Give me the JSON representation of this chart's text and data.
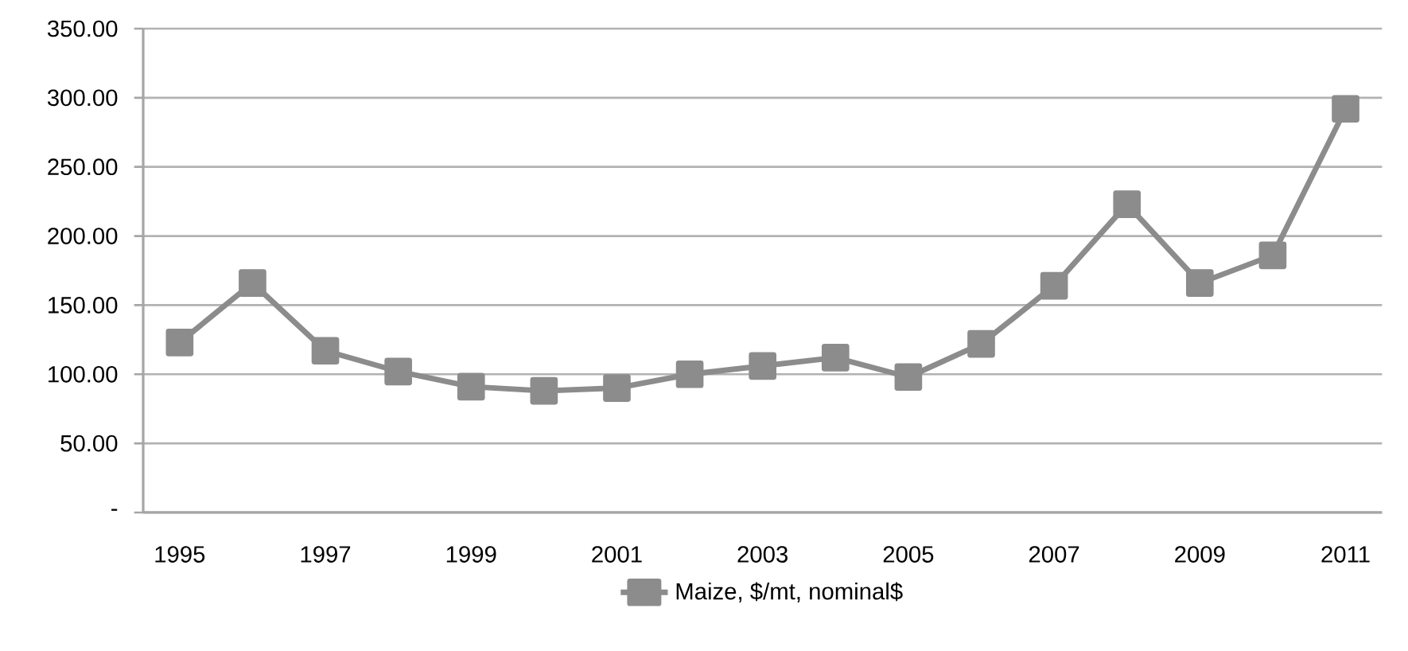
{
  "chart_data": {
    "type": "line",
    "categories": [
      "1995",
      null,
      "1997",
      null,
      "1999",
      null,
      "2001",
      null,
      "2003",
      null,
      "2005",
      null,
      "2007",
      null,
      "2009",
      null,
      "2011"
    ],
    "series": [
      {
        "name": "Maize, $/mt, nominal$",
        "color": "#8c8c8c",
        "values": [
          123,
          166,
          117,
          102,
          91,
          88,
          90,
          100,
          106,
          112,
          98,
          122,
          164,
          223,
          166,
          186,
          292
        ]
      }
    ],
    "ylim": [
      0,
      350
    ],
    "yticks": [
      {
        "value": 0,
        "label": "-"
      },
      {
        "value": 50,
        "label": "50.00"
      },
      {
        "value": 100,
        "label": "100.00"
      },
      {
        "value": 150,
        "label": "150.00"
      },
      {
        "value": 200,
        "label": "200.00"
      },
      {
        "value": 250,
        "label": "250.00"
      },
      {
        "value": 300,
        "label": "300.00"
      },
      {
        "value": 350,
        "label": "350.00"
      }
    ],
    "grid": "y",
    "legend": "bottom",
    "marker": "square",
    "line_style": "solid"
  }
}
